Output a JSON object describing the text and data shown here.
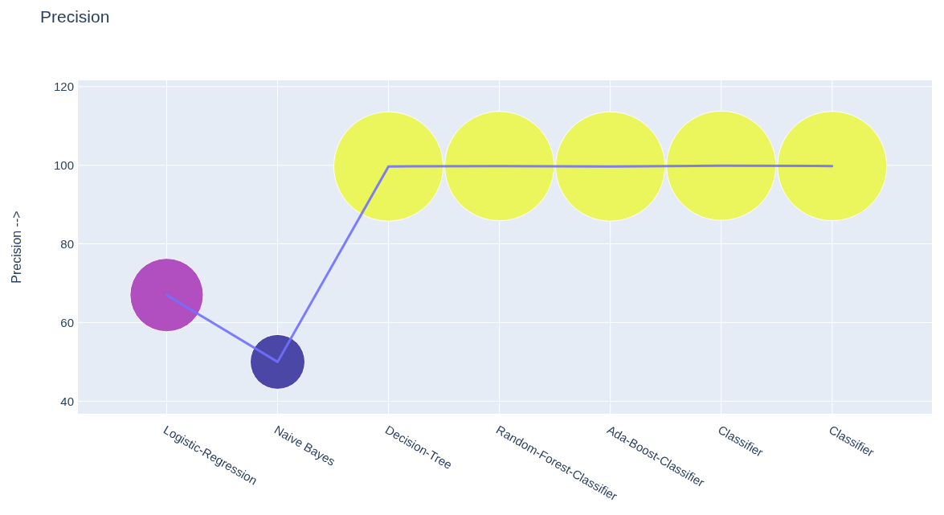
{
  "chart_data": {
    "type": "bubble",
    "title": "Precision",
    "ylabel": "Precision -->",
    "categories": [
      "Logistic-Regression",
      "Naive Bayes",
      "Decision-Tree",
      "Random-Forest-Classifier",
      "Ada-Boost-Classifier",
      "Classifier",
      "Classifier"
    ],
    "series": [
      {
        "type": "line",
        "color": "#7070ff",
        "values": [
          67,
          50,
          99.7,
          99.8,
          99.7,
          99.9,
          99.8
        ]
      },
      {
        "colors": [
          "#b24fc0",
          "#4b47a6",
          "#ebf55c",
          "#ebf55c",
          "#ebf55c",
          "#ebf55c",
          "#ebf55c"
        ],
        "values": [
          67,
          50,
          99.7,
          99.8,
          99.7,
          99.9,
          99.8
        ],
        "sizes": [
          0.45,
          0.25,
          1,
          1,
          1,
          1,
          1
        ]
      }
    ],
    "ylim": [
      36.8,
      121.6
    ],
    "yticks": [
      40,
      60,
      80,
      100,
      120
    ],
    "grid": true
  }
}
